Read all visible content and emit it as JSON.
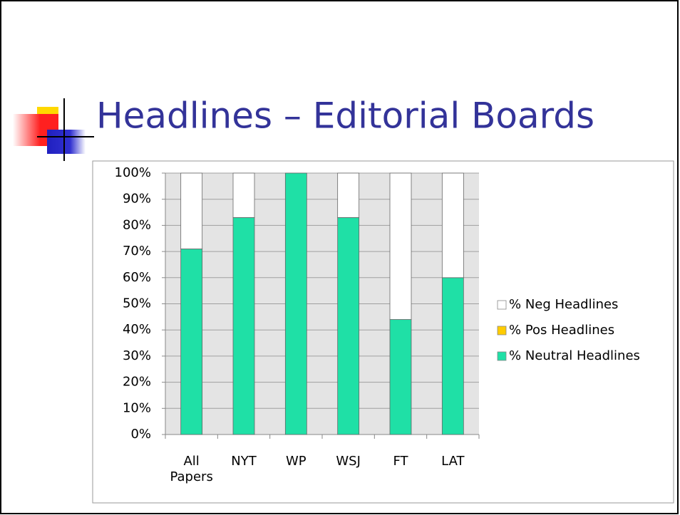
{
  "chart_data": {
    "type": "bar",
    "stacked": true,
    "title": "Headlines – Editorial Boards",
    "categories": [
      "All Papers",
      "NYT",
      "WP",
      "WSJ",
      "FT",
      "LAT"
    ],
    "series": [
      {
        "name": "% Neutral Headlines",
        "color": "#1fe0a6",
        "values": [
          71,
          83,
          100,
          83,
          44,
          60
        ]
      },
      {
        "name": "% Pos Headlines",
        "color": "#ffcc00",
        "values": [
          0,
          0,
          0,
          0,
          0,
          0
        ]
      },
      {
        "name": "% Neg Headlines",
        "color": "#ffffff",
        "values": [
          29,
          17,
          0,
          17,
          56,
          40
        ]
      }
    ],
    "ylim": [
      0,
      100
    ],
    "yticks": [
      {
        "value": 0,
        "label": "0%"
      },
      {
        "value": 10,
        "label": "10%"
      },
      {
        "value": 20,
        "label": "20%"
      },
      {
        "value": 30,
        "label": "30%"
      },
      {
        "value": 40,
        "label": "40%"
      },
      {
        "value": 50,
        "label": "50%"
      },
      {
        "value": 60,
        "label": "60%"
      },
      {
        "value": 70,
        "label": "70%"
      },
      {
        "value": 80,
        "label": "80%"
      },
      {
        "value": 90,
        "label": "90%"
      },
      {
        "value": 100,
        "label": "100%"
      }
    ],
    "grid": true,
    "legend": "right"
  }
}
